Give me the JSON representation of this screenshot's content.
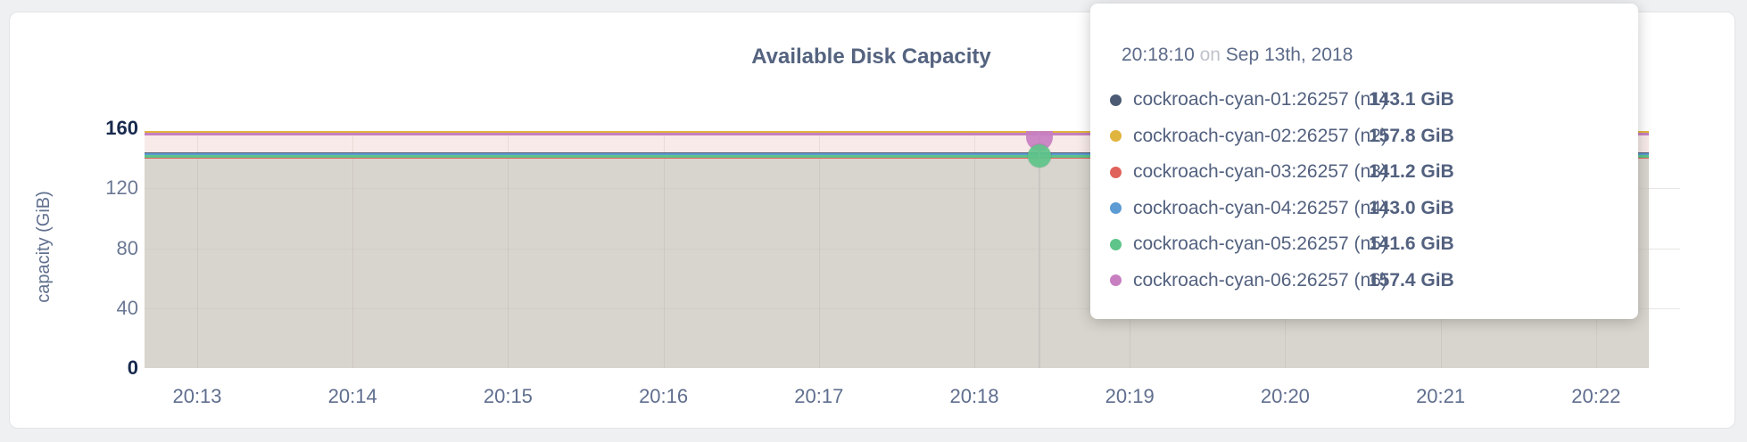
{
  "page": {
    "background": "#eff0f2"
  },
  "title": "Available Disk Capacity",
  "chart_data": {
    "type": "area",
    "title": "Available Disk Capacity",
    "xlabel": "",
    "ylabel": "capacity (GiB)",
    "ylim": [
      0,
      160
    ],
    "yticks": [
      0,
      40,
      80,
      120,
      160
    ],
    "xticks": [
      "20:13",
      "20:14",
      "20:15",
      "20:16",
      "20:17",
      "20:18",
      "20:19",
      "20:20",
      "20:21",
      "20:22"
    ],
    "grid": "on",
    "legend_position": "tooltip-overlay",
    "series": [
      {
        "name": "cockroach-cyan-01:26257 (n1)",
        "color": "#4c5a74",
        "value_gib": 143.1
      },
      {
        "name": "cockroach-cyan-02:26257 (n2)",
        "color": "#e0b53e",
        "value_gib": 157.8
      },
      {
        "name": "cockroach-cyan-03:26257 (n3)",
        "color": "#e0625c",
        "value_gib": 141.2
      },
      {
        "name": "cockroach-cyan-04:26257 (n4)",
        "color": "#5c9bd3",
        "value_gib": 143.0
      },
      {
        "name": "cockroach-cyan-05:26257 (n5)",
        "color": "#5ec489",
        "value_gib": 141.6
      },
      {
        "name": "cockroach-cyan-06:26257 (n6)",
        "color": "#c77fc1",
        "value_gib": 157.4
      }
    ],
    "fills": {
      "upper_band_color": "rgba(246,230,228,0.85)",
      "lower_band_color": "rgba(203,199,189,0.75)"
    },
    "hover_point": {
      "time": "20:18:10",
      "x_fraction": 0.595,
      "marker_series_indices": [
        5,
        4
      ]
    }
  },
  "tooltip": {
    "time": "20:18:10",
    "conjunction": "on",
    "date": "Sep 13th, 2018",
    "rows": [
      {
        "label": "cockroach-cyan-01:26257 (n1)",
        "value": "143.1 GiB",
        "color": "#4c5a74"
      },
      {
        "label": "cockroach-cyan-02:26257 (n2)",
        "value": "157.8 GiB",
        "color": "#e0b53e"
      },
      {
        "label": "cockroach-cyan-03:26257 (n3)",
        "value": "141.2 GiB",
        "color": "#e0625c"
      },
      {
        "label": "cockroach-cyan-04:26257 (n4)",
        "value": "143.0 GiB",
        "color": "#5c9bd3"
      },
      {
        "label": "cockroach-cyan-05:26257 (n5)",
        "value": "141.6 GiB",
        "color": "#5ec489"
      },
      {
        "label": "cockroach-cyan-06:26257 (n6)",
        "value": "157.4 GiB",
        "color": "#c77fc1"
      }
    ]
  }
}
